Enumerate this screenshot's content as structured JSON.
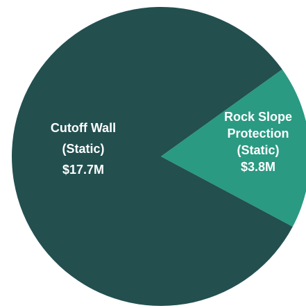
{
  "chart_data": {
    "type": "pie",
    "title": "",
    "slices": [
      {
        "name": "Cutoff Wall (Static)",
        "value": 17.7,
        "label_lines": [
          "Cutoff Wall",
          "(Static)",
          "$17.7M"
        ],
        "color": "#234f4f"
      },
      {
        "name": "Rock Slope Protection (Static)",
        "value": 3.8,
        "label_lines": [
          "Rock Slope",
          "Protection",
          "(Static)",
          "$3.8M"
        ],
        "color": "#2a9a82"
      }
    ],
    "legend": "none"
  }
}
